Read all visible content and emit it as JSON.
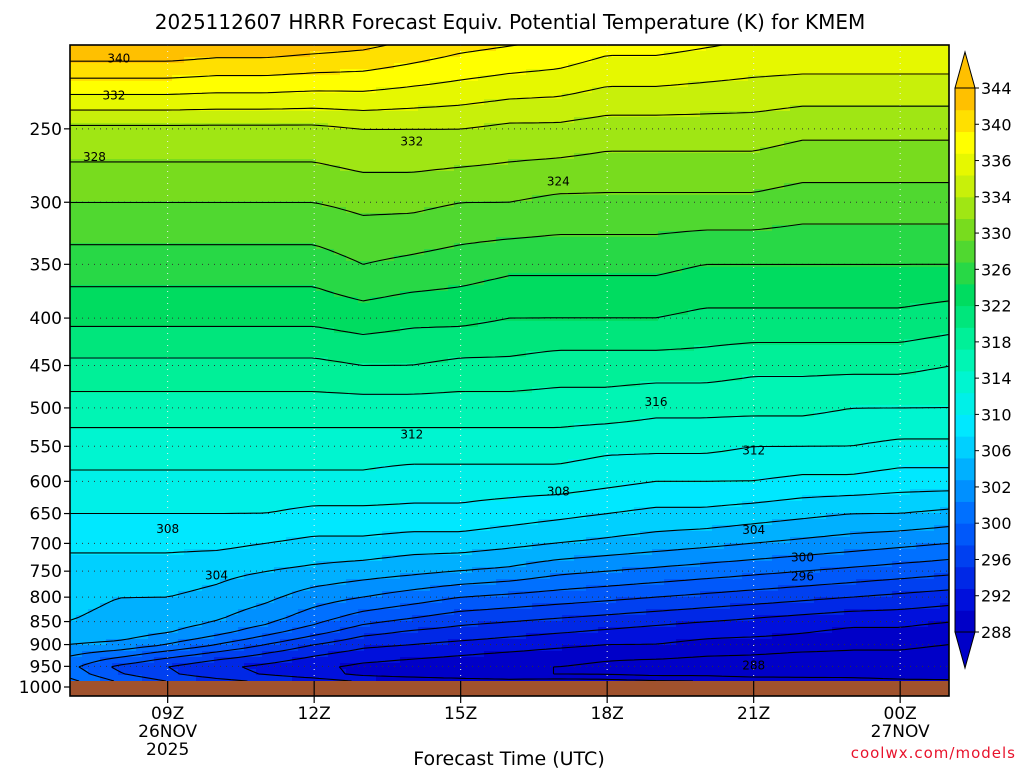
{
  "chart_data": {
    "type": "contour",
    "title": "2025112607 HRRR Forecast Equiv. Potential Temperature (K) for KMEM",
    "xlabel": "Forecast Time (UTC)",
    "ylabel": "",
    "credit": "coolwx.com/models",
    "x_ticks": [
      {
        "hour": 9,
        "lines": [
          "09Z",
          "26NOV",
          "2025"
        ]
      },
      {
        "hour": 12,
        "lines": [
          "12Z"
        ]
      },
      {
        "hour": 15,
        "lines": [
          "15Z"
        ]
      },
      {
        "hour": 18,
        "lines": [
          "18Z"
        ]
      },
      {
        "hour": 21,
        "lines": [
          "21Z"
        ]
      },
      {
        "hour": 24,
        "lines": [
          "00Z",
          "27NOV"
        ]
      }
    ],
    "xlim": [
      7,
      25
    ],
    "y_ticks": [
      250,
      300,
      350,
      400,
      450,
      500,
      550,
      600,
      650,
      700,
      750,
      800,
      850,
      900,
      950,
      1000
    ],
    "ylim": [
      1000,
      200
    ],
    "colorbar_levels": [
      288,
      290,
      292,
      294,
      296,
      298,
      300,
      302,
      304,
      306,
      308,
      310,
      312,
      314,
      316,
      318,
      320,
      322,
      324,
      326,
      328,
      330,
      332,
      334,
      336,
      338,
      340,
      342,
      344
    ],
    "colorbar_labels": [
      "344",
      "340",
      "336",
      "334",
      "330",
      "326",
      "322",
      "318",
      "314",
      "310",
      "306",
      "302",
      "300",
      "296",
      "292",
      "288"
    ],
    "colorbar_colors": [
      "#0000C8",
      "#0010DC",
      "#0028E6",
      "#0040F0",
      "#0058FA",
      "#0070FF",
      "#0090FF",
      "#00B0FF",
      "#00D0FF",
      "#00E8FF",
      "#00F0E8",
      "#00F5D0",
      "#00F5B4",
      "#00F098",
      "#00E67C",
      "#00DC60",
      "#28D846",
      "#50D830",
      "#78DC1E",
      "#A0E614",
      "#C8F00A",
      "#E6F800",
      "#FFFF00",
      "#FFE000",
      "#FFC000"
    ],
    "profile_hours": [
      7,
      8,
      9,
      10,
      11,
      12,
      13,
      14,
      15,
      16,
      17,
      18,
      19,
      20,
      21,
      22,
      23,
      24,
      25
    ],
    "profile_pressure": [
      1000,
      975,
      950,
      925,
      900,
      875,
      850,
      800,
      750,
      700,
      650,
      600,
      550,
      500,
      450,
      400,
      350,
      300,
      250,
      200
    ],
    "profiles": [
      [
        302.0,
        299.5,
        298.5,
        300.0,
        302.0,
        303.5,
        304.0,
        304.5,
        305.0,
        306.5,
        308.0,
        309.5,
        311.0,
        313.0,
        315.5,
        318.5,
        321.0,
        324.0,
        327.5,
        338.5
      ],
      [
        299.5,
        296.5,
        295.5,
        298.5,
        301.5,
        303.0,
        303.5,
        304.0,
        305.0,
        306.5,
        308.0,
        309.5,
        311.0,
        313.0,
        315.5,
        318.5,
        321.0,
        324.0,
        327.5,
        338.5
      ],
      [
        298.0,
        294.5,
        294.0,
        296.5,
        300.0,
        302.0,
        303.0,
        304.0,
        305.0,
        306.5,
        308.0,
        309.5,
        311.0,
        313.0,
        315.5,
        318.5,
        321.0,
        324.0,
        327.5,
        338.5
      ],
      [
        297.0,
        293.0,
        292.5,
        295.0,
        298.0,
        300.5,
        302.0,
        303.5,
        304.5,
        306.5,
        308.0,
        309.5,
        311.0,
        313.0,
        315.5,
        318.5,
        321.0,
        324.0,
        327.5,
        338.0
      ],
      [
        296.0,
        292.0,
        291.5,
        293.5,
        296.0,
        298.5,
        300.5,
        302.5,
        304.0,
        306.0,
        308.0,
        309.5,
        311.0,
        313.0,
        315.5,
        318.5,
        321.0,
        324.0,
        327.5,
        338.0
      ],
      [
        295.5,
        291.0,
        290.5,
        292.0,
        294.0,
        296.5,
        298.5,
        301.0,
        303.5,
        305.5,
        307.5,
        309.5,
        311.0,
        313.0,
        315.5,
        318.5,
        321.0,
        324.0,
        327.5,
        337.5
      ],
      [
        295.0,
        289.5,
        289.5,
        291.0,
        292.5,
        294.5,
        296.5,
        300.0,
        303.0,
        305.5,
        307.5,
        309.5,
        311.0,
        313.0,
        316.0,
        319.0,
        322.0,
        324.5,
        328.0,
        337.0
      ],
      [
        294.5,
        289.0,
        289.0,
        290.5,
        292.0,
        293.5,
        295.5,
        299.0,
        302.5,
        305.0,
        307.5,
        309.0,
        311.0,
        313.0,
        316.0,
        318.5,
        321.5,
        324.5,
        328.0,
        336.0
      ],
      [
        294.5,
        288.5,
        288.5,
        290.0,
        291.5,
        293.0,
        294.5,
        298.0,
        302.0,
        305.0,
        307.5,
        309.0,
        311.0,
        313.0,
        315.5,
        318.5,
        321.0,
        324.0,
        328.0,
        335.0
      ],
      [
        294.5,
        288.0,
        288.0,
        289.5,
        291.0,
        292.5,
        294.0,
        297.5,
        301.5,
        304.5,
        307.0,
        309.0,
        311.0,
        313.0,
        315.5,
        318.0,
        320.5,
        324.0,
        327.5,
        334.5
      ],
      [
        295.0,
        288.0,
        288.0,
        289.0,
        290.5,
        292.0,
        293.5,
        297.0,
        300.5,
        304.0,
        306.5,
        309.0,
        311.0,
        313.0,
        315.0,
        318.0,
        320.5,
        323.5,
        327.5,
        334.0
      ],
      [
        294.5,
        288.0,
        287.5,
        288.5,
        290.0,
        291.5,
        293.0,
        296.5,
        300.0,
        303.5,
        306.0,
        308.5,
        310.5,
        313.0,
        315.0,
        318.0,
        320.5,
        323.5,
        327.0,
        333.0
      ],
      [
        294.0,
        287.5,
        287.0,
        288.5,
        290.0,
        291.0,
        292.5,
        296.0,
        299.5,
        303.0,
        305.5,
        308.0,
        310.5,
        312.5,
        315.0,
        318.0,
        320.5,
        323.5,
        327.0,
        333.0
      ],
      [
        293.5,
        287.5,
        287.0,
        288.0,
        289.5,
        290.5,
        292.0,
        295.5,
        299.0,
        302.5,
        305.5,
        308.0,
        310.5,
        312.5,
        315.0,
        317.5,
        320.0,
        323.5,
        327.0,
        332.5
      ],
      [
        293.0,
        287.0,
        286.5,
        288.0,
        289.0,
        290.5,
        291.5,
        295.0,
        298.5,
        302.0,
        305.0,
        308.0,
        310.0,
        312.5,
        314.5,
        317.5,
        320.0,
        323.5,
        327.0,
        332.0
      ],
      [
        292.5,
        287.0,
        286.5,
        287.5,
        289.0,
        290.0,
        291.0,
        294.5,
        298.0,
        301.5,
        304.5,
        307.5,
        310.0,
        312.5,
        314.5,
        317.5,
        320.0,
        323.0,
        326.5,
        332.0
      ],
      [
        292.0,
        287.0,
        286.5,
        287.5,
        288.5,
        289.5,
        290.5,
        294.0,
        297.5,
        301.0,
        304.0,
        307.5,
        310.0,
        312.0,
        314.5,
        317.5,
        320.0,
        323.0,
        326.5,
        332.0
      ],
      [
        291.5,
        286.5,
        286.5,
        287.5,
        288.5,
        289.5,
        290.5,
        293.5,
        297.0,
        300.5,
        304.0,
        307.0,
        309.5,
        312.0,
        314.5,
        317.5,
        320.0,
        323.0,
        326.5,
        332.0
      ],
      [
        291.0,
        286.5,
        286.5,
        287.0,
        288.0,
        289.0,
        290.0,
        293.0,
        296.5,
        300.0,
        303.5,
        307.0,
        309.5,
        312.0,
        314.0,
        317.0,
        320.0,
        323.0,
        326.5,
        332.0
      ]
    ],
    "contour_labels": [
      {
        "text": "340",
        "hour": 8.0,
        "pressure": 210
      },
      {
        "text": "332",
        "hour": 7.9,
        "pressure": 230
      },
      {
        "text": "328",
        "hour": 7.5,
        "pressure": 268
      },
      {
        "text": "332",
        "hour": 14.0,
        "pressure": 258
      },
      {
        "text": "324",
        "hour": 17.0,
        "pressure": 285
      },
      {
        "text": "316",
        "hour": 19.0,
        "pressure": 493
      },
      {
        "text": "312",
        "hour": 14.0,
        "pressure": 534
      },
      {
        "text": "312",
        "hour": 21.0,
        "pressure": 556
      },
      {
        "text": "308",
        "hour": 17.0,
        "pressure": 615
      },
      {
        "text": "308",
        "hour": 9.0,
        "pressure": 675
      },
      {
        "text": "304",
        "hour": 21.0,
        "pressure": 677
      },
      {
        "text": "300",
        "hour": 22.0,
        "pressure": 725
      },
      {
        "text": "304",
        "hour": 10.0,
        "pressure": 758
      },
      {
        "text": "296",
        "hour": 22.0,
        "pressure": 760
      },
      {
        "text": "288",
        "hour": 21.0,
        "pressure": 948
      }
    ]
  }
}
